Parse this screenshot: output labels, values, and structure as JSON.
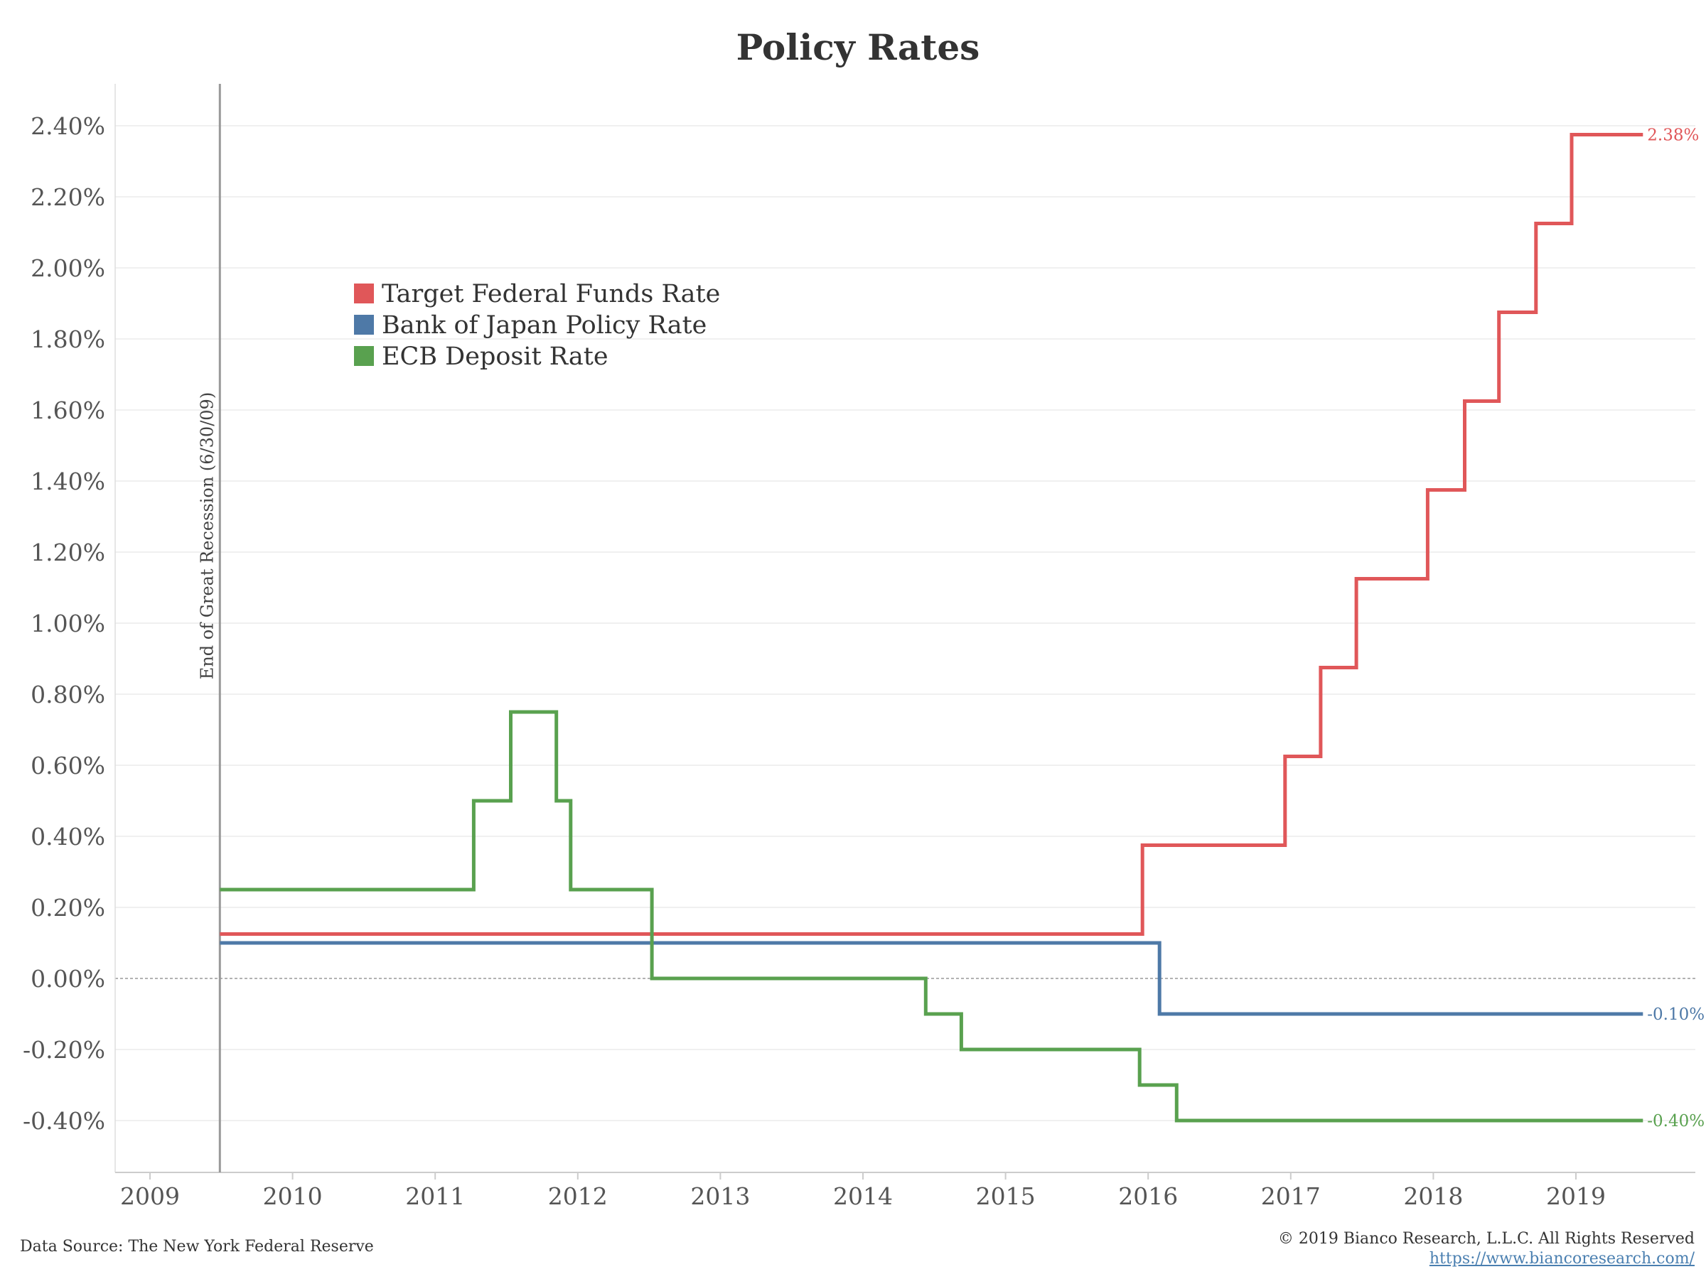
{
  "chart_data": {
    "type": "line",
    "title": "Policy Rates",
    "xlim": [
      2009.0,
      2020.1
    ],
    "ylim": [
      -0.54,
      2.52
    ],
    "y_ticks": [
      2.4,
      2.2,
      2.0,
      1.8,
      1.6,
      1.4,
      1.2,
      1.0,
      0.8,
      0.6,
      0.4,
      0.2,
      0.0,
      -0.2,
      -0.4
    ],
    "y_tick_labels": [
      "2.40%",
      "2.20%",
      "2.00%",
      "1.80%",
      "1.60%",
      "1.40%",
      "1.20%",
      "1.00%",
      "0.80%",
      "0.60%",
      "0.40%",
      "0.20%",
      "0.00%",
      "-0.20%",
      "-0.40%"
    ],
    "x_ticks": [
      2009,
      2010,
      2011,
      2012,
      2013,
      2014,
      2015,
      2016,
      2017,
      2018,
      2019
    ],
    "x_tick_labels": [
      "2009",
      "2010",
      "2011",
      "2012",
      "2013",
      "2014",
      "2015",
      "2016",
      "2017",
      "2018",
      "2019"
    ],
    "grid": true,
    "legend_position": "upper-left",
    "annotation": {
      "label": "End of Great Recession (6/30/09)",
      "x": 2009.49
    },
    "series": [
      {
        "name": "Target Federal Funds Rate",
        "color": "#e05759",
        "end_label": "2.38%",
        "points": [
          [
            2009.49,
            0.125
          ],
          [
            2015.96,
            0.125
          ],
          [
            2015.96,
            0.375
          ],
          [
            2016.96,
            0.375
          ],
          [
            2016.96,
            0.625
          ],
          [
            2017.21,
            0.625
          ],
          [
            2017.21,
            0.875
          ],
          [
            2017.46,
            0.875
          ],
          [
            2017.46,
            1.125
          ],
          [
            2017.96,
            1.125
          ],
          [
            2017.96,
            1.375
          ],
          [
            2018.22,
            1.375
          ],
          [
            2018.22,
            1.625
          ],
          [
            2018.46,
            1.625
          ],
          [
            2018.46,
            1.875
          ],
          [
            2018.72,
            1.875
          ],
          [
            2018.72,
            2.125
          ],
          [
            2018.97,
            2.125
          ],
          [
            2018.97,
            2.375
          ],
          [
            2019.47,
            2.375
          ]
        ]
      },
      {
        "name": "Bank of Japan Policy Rate",
        "color": "#4e79a7",
        "end_label": "-0.10%",
        "points": [
          [
            2009.49,
            0.1
          ],
          [
            2016.08,
            0.1
          ],
          [
            2016.08,
            -0.1
          ],
          [
            2019.47,
            -0.1
          ]
        ]
      },
      {
        "name": "ECB Deposit Rate",
        "color": "#59a14f",
        "end_label": "-0.40%",
        "points": [
          [
            2009.49,
            0.25
          ],
          [
            2011.27,
            0.25
          ],
          [
            2011.27,
            0.5
          ],
          [
            2011.53,
            0.5
          ],
          [
            2011.53,
            0.75
          ],
          [
            2011.85,
            0.75
          ],
          [
            2011.85,
            0.5
          ],
          [
            2011.95,
            0.5
          ],
          [
            2011.95,
            0.25
          ],
          [
            2012.52,
            0.25
          ],
          [
            2012.52,
            0.0
          ],
          [
            2014.44,
            0.0
          ],
          [
            2014.44,
            -0.1
          ],
          [
            2014.69,
            -0.1
          ],
          [
            2014.69,
            -0.2
          ],
          [
            2015.94,
            -0.2
          ],
          [
            2015.94,
            -0.3
          ],
          [
            2016.2,
            -0.3
          ],
          [
            2016.2,
            -0.4
          ],
          [
            2019.47,
            -0.4
          ]
        ]
      }
    ]
  },
  "footer": {
    "source": "Data Source: The New York Federal Reserve",
    "copyright": "© 2019 Bianco Research, L.L.C. All Rights Reserved",
    "url": "https://www.biancoresearch.com/"
  }
}
